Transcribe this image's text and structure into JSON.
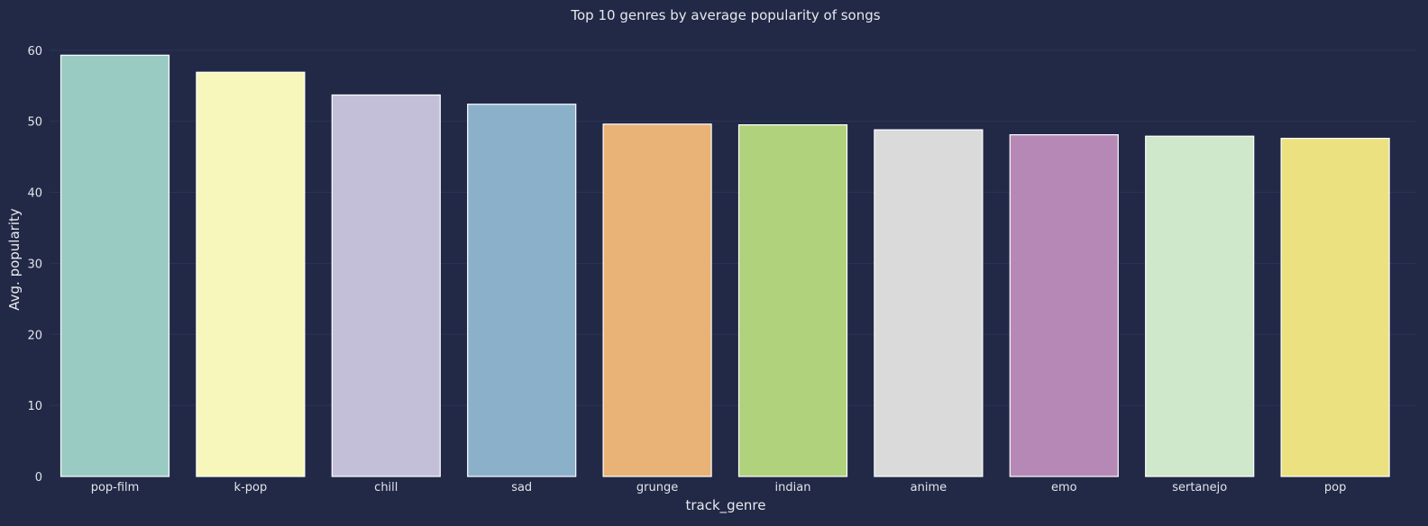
{
  "chart_data": {
    "type": "bar",
    "title": "Top 10 genres by average popularity of songs",
    "xlabel": "track_genre",
    "ylabel": "Avg. popularity",
    "ylim": [
      0,
      62
    ],
    "yticks": [
      0,
      10,
      20,
      30,
      40,
      50,
      60
    ],
    "grid": "horizontal",
    "categories": [
      "pop-film",
      "k-pop",
      "chill",
      "sad",
      "grunge",
      "indian",
      "anime",
      "emo",
      "sertanejo",
      "pop"
    ],
    "values": [
      59.3,
      56.9,
      53.7,
      52.4,
      49.6,
      49.5,
      48.8,
      48.1,
      47.9,
      47.6
    ],
    "colors": [
      "#99cbc3",
      "#f7f7bb",
      "#c3bfd8",
      "#8bb0ca",
      "#e9b277",
      "#b1d27c",
      "#dadada",
      "#b688b6",
      "#cfe7cb",
      "#ece181"
    ]
  },
  "theme": {
    "background": "#212946",
    "grid": "#2b3456",
    "edge": "#ffffff",
    "text": "#e8e8ee"
  }
}
